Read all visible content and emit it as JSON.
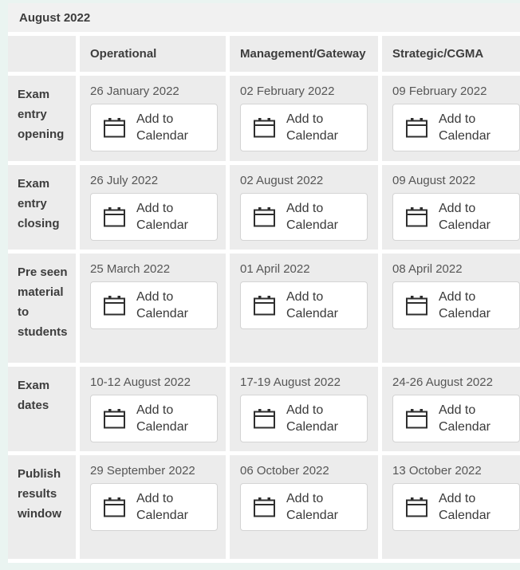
{
  "title": "August 2022",
  "table": {
    "columns": [
      "Operational",
      "Management/Gateway",
      "Strategic/CGMA"
    ],
    "rows": [
      {
        "label": "Exam entry opening",
        "dates": [
          "26 January 2022",
          "02 February 2022",
          "09 February 2022"
        ]
      },
      {
        "label": "Exam entry closing",
        "dates": [
          "26 July 2022",
          "02 August 2022",
          "09 August 2022"
        ]
      },
      {
        "label": "Pre seen material to students",
        "dates": [
          "25 March 2022",
          "01 April 2022",
          "08 April 2022"
        ]
      },
      {
        "label": "Exam dates",
        "dates": [
          "10-12 August 2022",
          "17-19 August 2022",
          "24-26 August 2022"
        ]
      },
      {
        "label": "Publish results window",
        "dates": [
          "29 September 2022",
          "06 October 2022",
          "13 October 2022"
        ]
      }
    ],
    "add_button_label": "Add to Calendar"
  },
  "colors": {
    "page_bg": "#eaf4f1",
    "board_bg": "#ffffff",
    "title_band_bg": "#f1f1f1",
    "cell_bg": "#ececec",
    "heading_text": "#3d3d3d",
    "date_text": "#565656",
    "button_bg": "#ffffff",
    "button_border": "#d4d4d4",
    "icon_stroke": "#2e2e2e"
  }
}
